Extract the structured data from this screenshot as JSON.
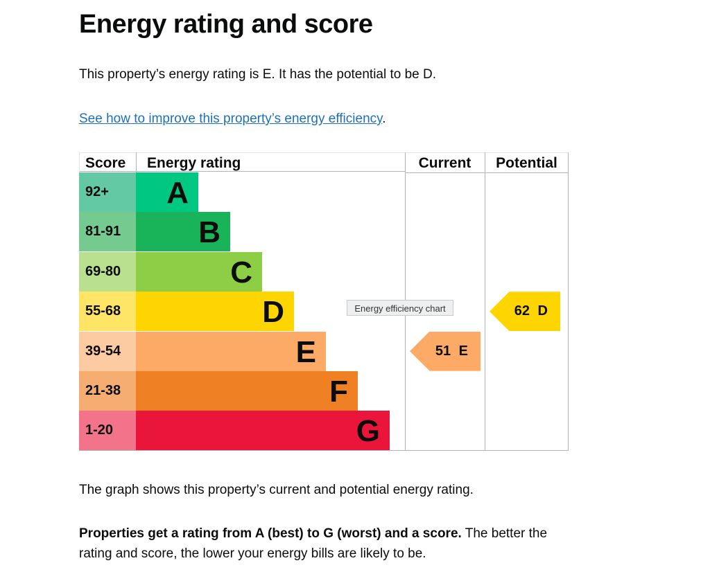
{
  "title": "Energy rating and score",
  "intro": "This property’s energy rating is E. It has the potential to be D.",
  "link": "See how to improve this property’s energy efficiency",
  "link_suffix": ".",
  "chart": {
    "headers": {
      "score": "Score",
      "rating": "Energy rating",
      "current": "Current",
      "potential": "Potential"
    },
    "bands": [
      {
        "score": "92+",
        "letter": "A",
        "color": "#00c781",
        "score_color": "#63c8a4"
      },
      {
        "score": "81-91",
        "letter": "B",
        "color": "#19b459",
        "score_color": "#75cb8f"
      },
      {
        "score": "69-80",
        "letter": "C",
        "color": "#8dce46",
        "score_color": "#b8e08f"
      },
      {
        "score": "55-68",
        "letter": "D",
        "color": "#ffd500",
        "score_color": "#ffe566"
      },
      {
        "score": "39-54",
        "letter": "E",
        "color": "#fcaa65",
        "score_color": "#fdcba2"
      },
      {
        "score": "21-38",
        "letter": "F",
        "color": "#ef8023",
        "score_color": "#f5ad72"
      },
      {
        "score": "1-20",
        "letter": "G",
        "color": "#e9153b",
        "score_color": "#f3748a"
      }
    ],
    "current": {
      "label": "51 E",
      "score": 51,
      "band": "E",
      "color": "#fcaa65"
    },
    "potential": {
      "label": "62 D",
      "score": 62,
      "band": "D",
      "color": "#ffd500"
    },
    "tooltip": "Energy efficiency chart"
  },
  "caption": "The graph shows this property’s current and potential energy rating.",
  "note_bold": "Properties get a rating from A (best) to G (worst) and a score.",
  "note_rest": " The better the rating and score, the lower your energy bills are likely to be."
}
